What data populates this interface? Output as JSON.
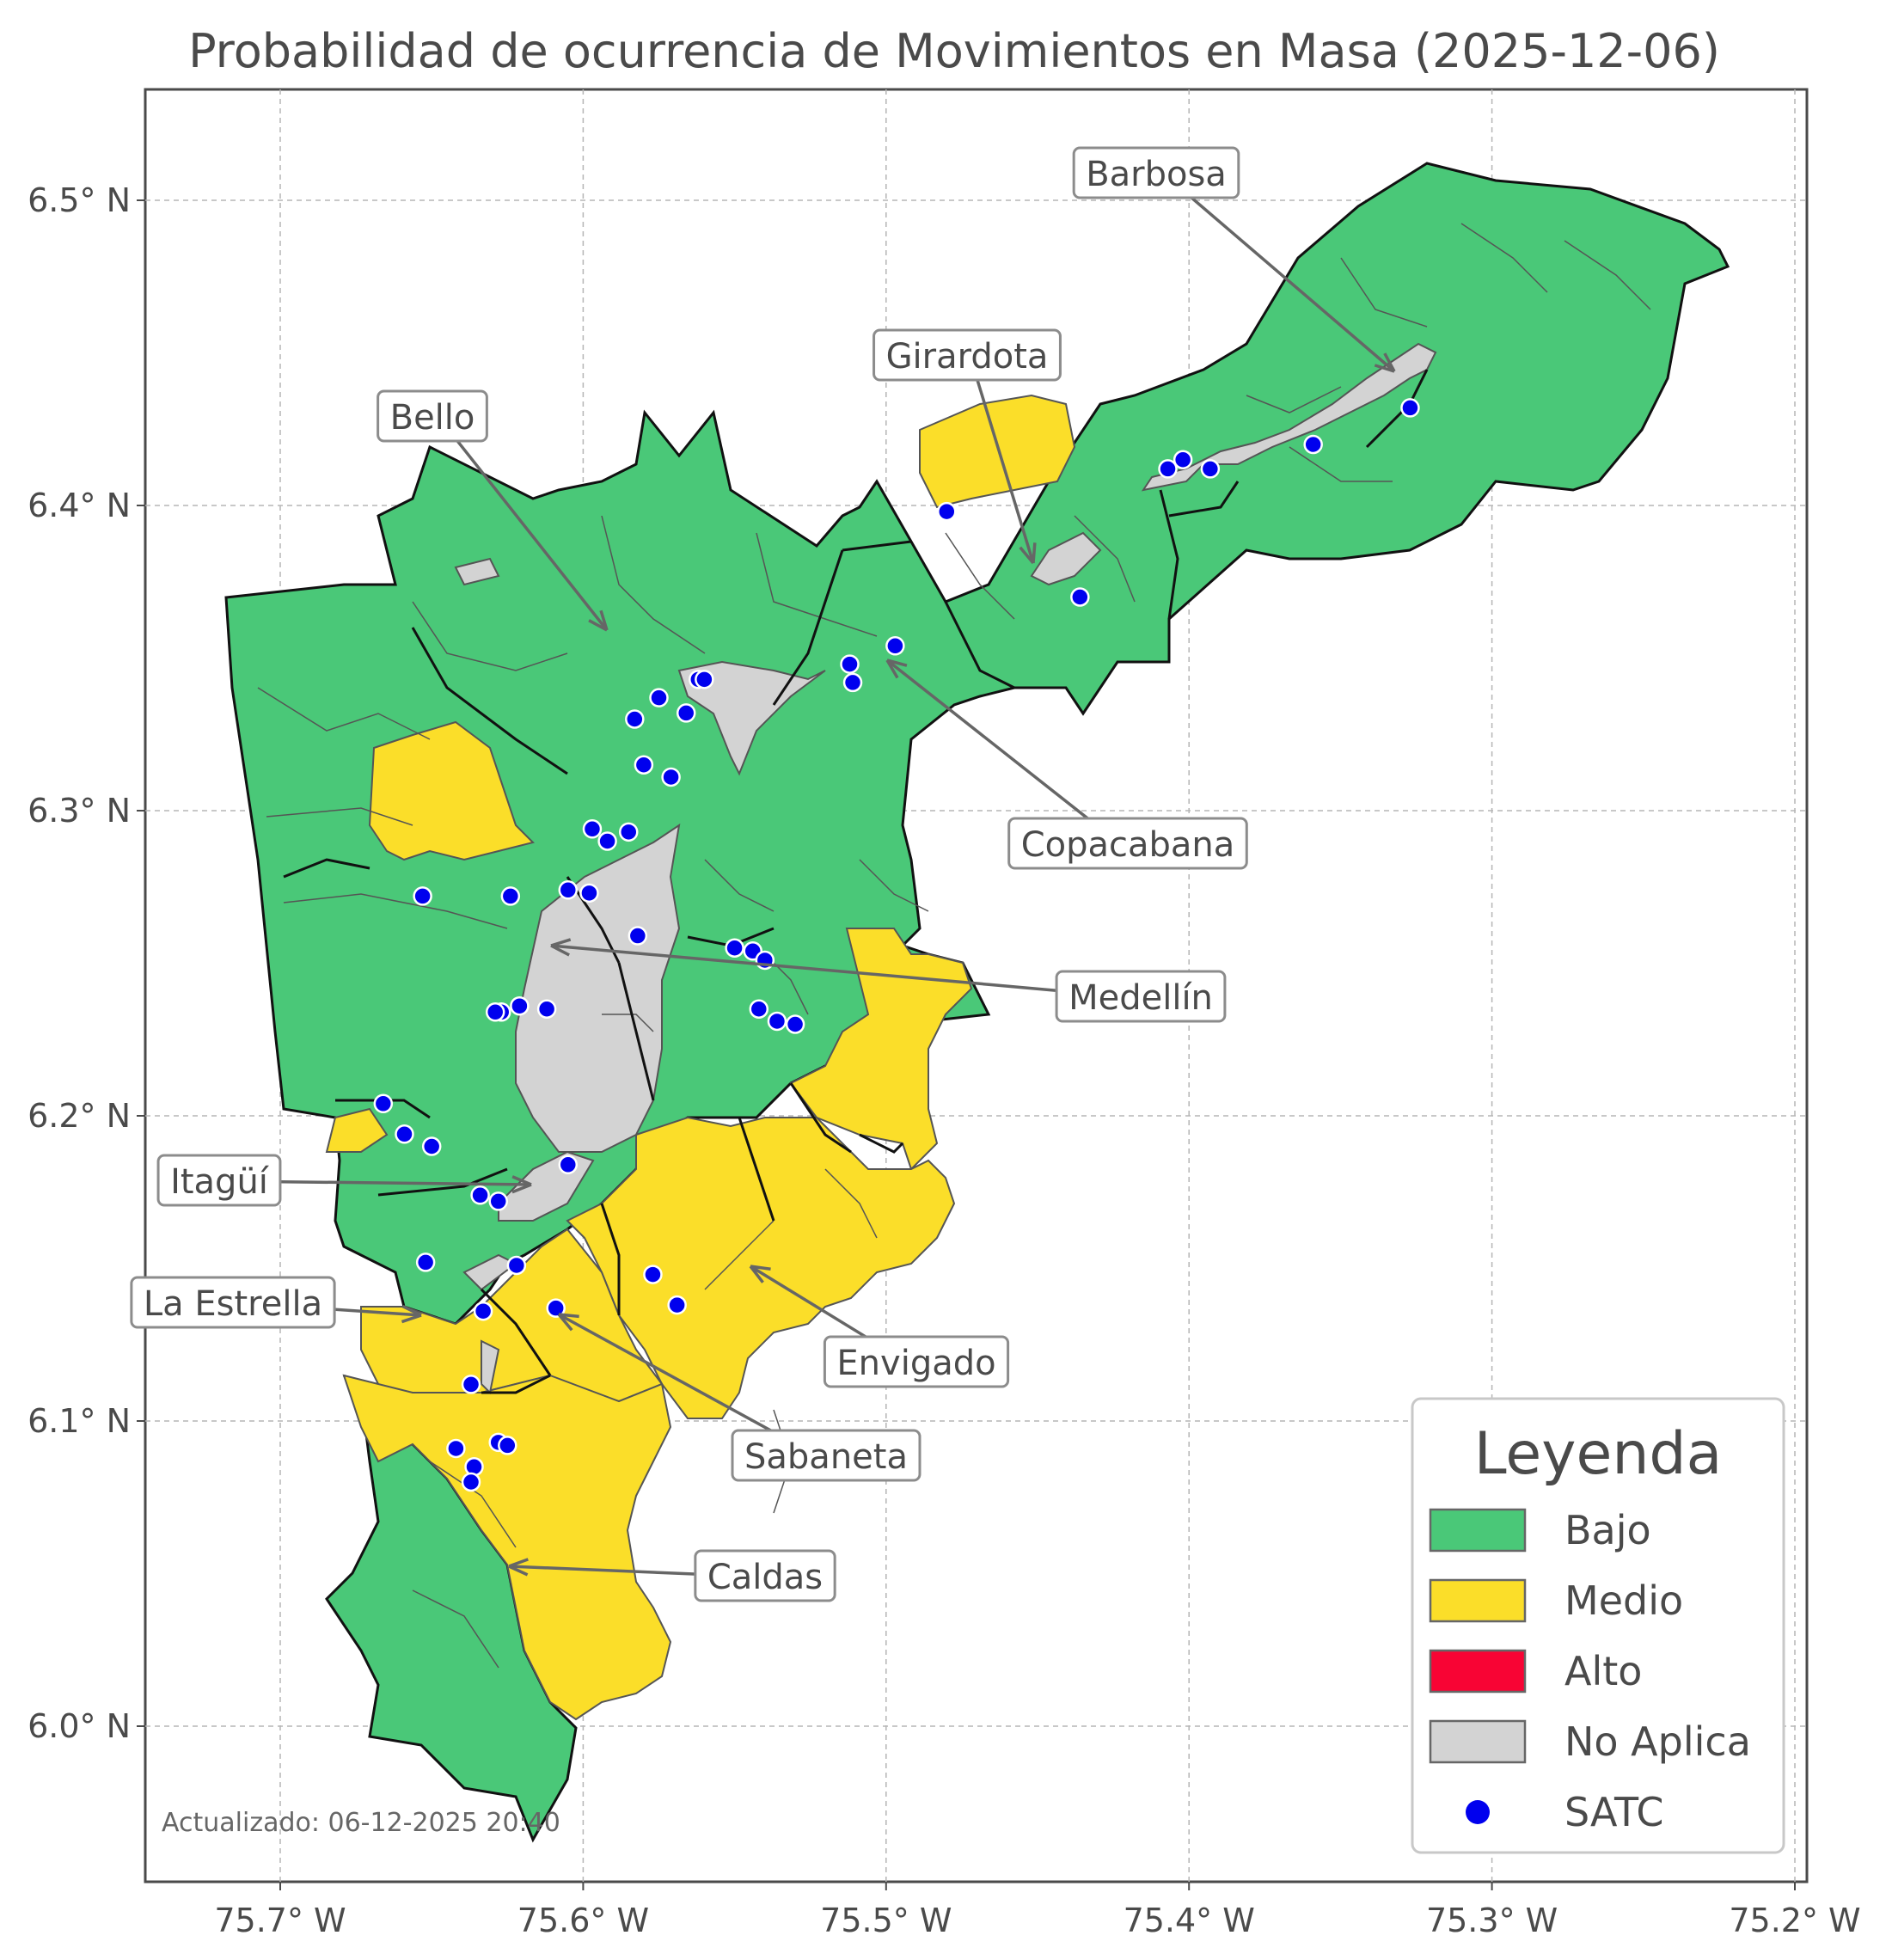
{
  "title": "Probabilidad de ocurrencia de Movimientos en Masa (2025-12-06)",
  "updated": "Actualizado: 06-12-2025 20:40",
  "colors": {
    "bajo": "#4ac878",
    "medio": "#fbde29",
    "alto": "#f80434",
    "no_aplica": "#d3d3d3",
    "satc": "#0000ee",
    "border": "#111111",
    "sub_border": "#555555"
  },
  "axes": {
    "x_ticks": [
      "75.7° W",
      "75.6° W",
      "75.5° W",
      "75.4° W",
      "75.3° W",
      "75.2° W"
    ],
    "y_ticks": [
      "6.5° N",
      "6.4° N",
      "6.3° N",
      "6.2° N",
      "6.1° N",
      "6.0° N"
    ],
    "grid": true
  },
  "municipalities": [
    {
      "name": "Barbosa"
    },
    {
      "name": "Girardota"
    },
    {
      "name": "Bello"
    },
    {
      "name": "Copacabana"
    },
    {
      "name": "Medellín"
    },
    {
      "name": "Itagüí"
    },
    {
      "name": "La Estrella"
    },
    {
      "name": "Envigado"
    },
    {
      "name": "Sabaneta"
    },
    {
      "name": "Caldas"
    }
  ],
  "legend": {
    "title": "Leyenda",
    "placement": "bottom-right",
    "items": [
      {
        "label": "Bajo",
        "kind": "patch",
        "color": "#4ac878"
      },
      {
        "label": "Medio",
        "kind": "patch",
        "color": "#fbde29"
      },
      {
        "label": "Alto",
        "kind": "patch",
        "color": "#f80434"
      },
      {
        "label": "No Aplica",
        "kind": "patch",
        "color": "#d3d3d3"
      },
      {
        "label": "SATC",
        "kind": "marker",
        "color": "#0000ee"
      }
    ]
  },
  "satc_stations": [
    [
      -75.327,
      6.432
    ],
    [
      -75.359,
      6.42
    ],
    [
      -75.393,
      6.412
    ],
    [
      -75.402,
      6.415
    ],
    [
      -75.407,
      6.412
    ],
    [
      -75.48,
      6.398
    ],
    [
      -75.436,
      6.37
    ],
    [
      -75.497,
      6.354
    ],
    [
      -75.512,
      6.348
    ],
    [
      -75.511,
      6.342
    ],
    [
      -75.562,
      6.343
    ],
    [
      -75.56,
      6.343
    ],
    [
      -75.575,
      6.337
    ],
    [
      -75.566,
      6.332
    ],
    [
      -75.583,
      6.33
    ],
    [
      -75.58,
      6.315
    ],
    [
      -75.571,
      6.311
    ],
    [
      -75.597,
      6.294
    ],
    [
      -75.585,
      6.293
    ],
    [
      -75.592,
      6.29
    ],
    [
      -75.653,
      6.272
    ],
    [
      -75.624,
      6.272
    ],
    [
      -75.605,
      6.274
    ],
    [
      -75.598,
      6.273
    ],
    [
      -75.582,
      6.259
    ],
    [
      -75.55,
      6.255
    ],
    [
      -75.544,
      6.254
    ],
    [
      -75.54,
      6.251
    ],
    [
      -75.542,
      6.235
    ],
    [
      -75.536,
      6.231
    ],
    [
      -75.53,
      6.23
    ],
    [
      -75.621,
      6.236
    ],
    [
      -75.627,
      6.234
    ],
    [
      -75.629,
      6.234
    ],
    [
      -75.612,
      6.235
    ],
    [
      -75.666,
      6.204
    ],
    [
      -75.659,
      6.194
    ],
    [
      -75.65,
      6.19
    ],
    [
      -75.605,
      6.184
    ],
    [
      -75.634,
      6.174
    ],
    [
      -75.628,
      6.172
    ],
    [
      -75.652,
      6.152
    ],
    [
      -75.622,
      6.151
    ],
    [
      -75.577,
      6.148
    ],
    [
      -75.569,
      6.138
    ],
    [
      -75.609,
      6.137
    ],
    [
      -75.633,
      6.136
    ],
    [
      -75.637,
      6.112
    ],
    [
      -75.642,
      6.091
    ],
    [
      -75.628,
      6.093
    ],
    [
      -75.625,
      6.092
    ],
    [
      -75.636,
      6.085
    ],
    [
      -75.637,
      6.08
    ]
  ]
}
